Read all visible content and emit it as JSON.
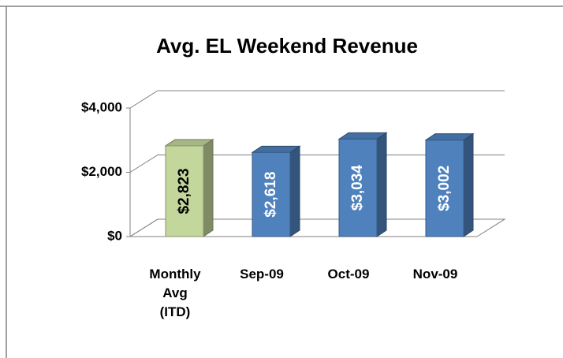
{
  "chart_data": {
    "type": "bar3d",
    "title": "Avg. EL Weekend Revenue",
    "categories": [
      "Monthly Avg (ITD)",
      "Sep-09",
      "Oct-09",
      "Nov-09"
    ],
    "values": [
      2823,
      2618,
      3034,
      3002
    ],
    "value_labels": [
      "$2,823",
      "$2,618",
      "$3,034",
      "$3,002"
    ],
    "colors": [
      "#c3d69b",
      "#4f81bd",
      "#4f81bd",
      "#4f81bd"
    ],
    "ylim": [
      0,
      4000
    ],
    "yticks": [
      {
        "value": 0,
        "label": "$0"
      },
      {
        "value": 2000,
        "label": "$2,000"
      },
      {
        "value": 4000,
        "label": "$4,000"
      }
    ],
    "grid": true
  }
}
